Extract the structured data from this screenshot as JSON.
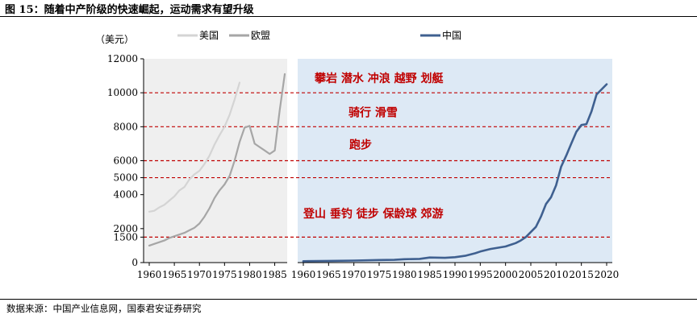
{
  "figure_title": "图 15：随着中产阶级的快速崛起，运动需求有望升级",
  "source": "数据来源：中国产业信息网，国泰君安证券研究",
  "chart_data": [
    {
      "type": "line",
      "title": "",
      "ylabel": "（美元）",
      "xlabel": "",
      "ylim": [
        0,
        12000
      ],
      "xlim": [
        1960,
        1987
      ],
      "x_ticks": [
        "1960",
        "1965",
        "1970",
        "1975",
        "1980",
        "1985"
      ],
      "y_ticks": [
        "0",
        "1500",
        "2000",
        "4000",
        "5000",
        "6000",
        "8000",
        "10000",
        "12000"
      ],
      "background": "#efefef",
      "legend_position": "top",
      "series": [
        {
          "name": "美国",
          "color": "#d4d4d4",
          "x": [
            1960,
            1961,
            1962,
            1963,
            1964,
            1965,
            1966,
            1967,
            1968,
            1969,
            1970,
            1971,
            1972,
            1973,
            1974,
            1975,
            1976,
            1977,
            1978
          ],
          "values": [
            3000,
            3050,
            3250,
            3400,
            3650,
            3900,
            4250,
            4450,
            4900,
            5200,
            5400,
            5800,
            6300,
            6950,
            7500,
            8000,
            8700,
            9600,
            10600
          ]
        },
        {
          "name": "欧盟",
          "color": "#a6a6a6",
          "x": [
            1960,
            1961,
            1962,
            1963,
            1964,
            1965,
            1966,
            1967,
            1968,
            1969,
            1970,
            1971,
            1972,
            1973,
            1974,
            1975,
            1976,
            1977,
            1978,
            1979,
            1980,
            1981,
            1982,
            1983,
            1984,
            1985,
            1986,
            1987
          ],
          "values": [
            1000,
            1100,
            1200,
            1300,
            1450,
            1550,
            1650,
            1750,
            1900,
            2050,
            2300,
            2700,
            3200,
            3800,
            4250,
            4600,
            5100,
            6000,
            7100,
            7950,
            8050,
            7000,
            6800,
            6600,
            6400,
            6600,
            9000,
            11100
          ]
        }
      ]
    },
    {
      "type": "line",
      "title": "",
      "xlabel": "",
      "ylabel": "",
      "ylim": [
        0,
        12000
      ],
      "xlim": [
        1960,
        2020
      ],
      "x_ticks": [
        "1960",
        "1965",
        "1970",
        "1975",
        "1980",
        "1985",
        "1990",
        "1995",
        "2000",
        "2005",
        "2010",
        "2015",
        "2020"
      ],
      "background": "#dde9f5",
      "legend_position": "top",
      "series": [
        {
          "name": "中国",
          "color": "#3f6090",
          "x": [
            1960,
            1965,
            1970,
            1975,
            1978,
            1980,
            1983,
            1985,
            1988,
            1990,
            1992,
            1994,
            1995,
            1997,
            2000,
            2002,
            2003,
            2004,
            2005,
            2006,
            2007,
            2008,
            2009,
            2010,
            2011,
            2012,
            2013,
            2014,
            2015,
            2016,
            2017,
            2018,
            2019,
            2020
          ],
          "values": [
            80,
            100,
            120,
            150,
            160,
            200,
            220,
            300,
            280,
            320,
            400,
            550,
            650,
            800,
            950,
            1150,
            1300,
            1500,
            1800,
            2100,
            2700,
            3450,
            3850,
            4550,
            5650,
            6300,
            7000,
            7700,
            8100,
            8150,
            8900,
            9900,
            10200,
            10500
          ]
        }
      ]
    }
  ],
  "reference_lines": {
    "color": "#c00000",
    "values": [
      1500,
      5000,
      6000,
      8000,
      10000
    ]
  },
  "annotations": [
    {
      "text": "攀岩 潜水 冲浪 越野 划艇",
      "y": 10900,
      "x": 1983
    },
    {
      "text": "骑行 滑雪",
      "y": 8900,
      "x": 1984
    },
    {
      "text": "跑步",
      "y": 7000,
      "x": 1984
    },
    {
      "text": "登山 垂钓 徒步 保龄球 郊游",
      "y": 2950,
      "x": 1960
    }
  ],
  "annotation_color": "#c00000"
}
